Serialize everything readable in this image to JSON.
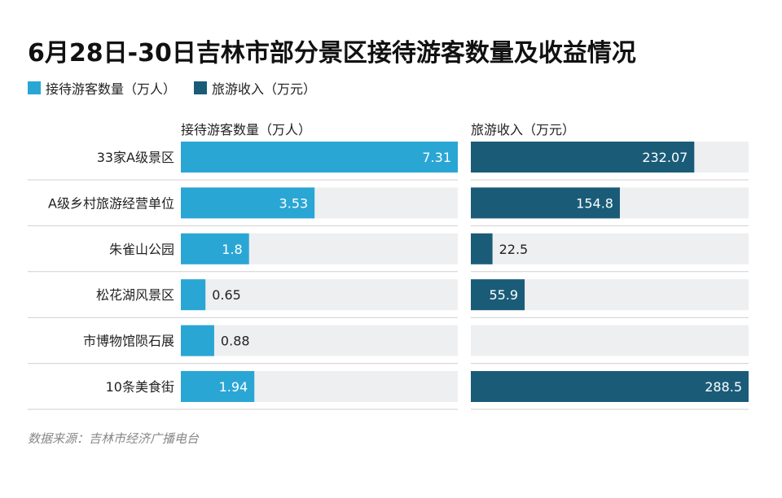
{
  "title": "6月28日-30日吉林市部分景区接待游客数量及收益情况",
  "legend": [
    {
      "label": "接待游客数量（万人）",
      "color": "#2aa6d5"
    },
    {
      "label": "旅游收入（万元）",
      "color": "#1a5c78"
    }
  ],
  "panels": {
    "left_header": "接待游客数量（万人）",
    "right_header": "旅游收入（万元）"
  },
  "footer": "数据来源：吉林市经济广播电台",
  "chart_data": {
    "type": "bar",
    "orientation": "horizontal",
    "categories": [
      "33家A级景区",
      "A级乡村旅游经营单位",
      "朱雀山公园",
      "松花湖风景区",
      "市博物馆陨石展",
      "10条美食街"
    ],
    "series": [
      {
        "name": "接待游客数量（万人）",
        "color": "#2aa6d5",
        "values": [
          7.31,
          3.53,
          1.8,
          0.65,
          0.88,
          1.94
        ],
        "labels": [
          "7.31",
          "3.53",
          "1.8",
          "0.65",
          "0.88",
          "1.94"
        ],
        "xlim": [
          0,
          7.31
        ]
      },
      {
        "name": "旅游收入（万元）",
        "color": "#1a5c78",
        "values": [
          232.07,
          154.8,
          22.5,
          55.9,
          null,
          288.5
        ],
        "labels": [
          "232.07",
          "154.8",
          "22.5",
          "55.9",
          "",
          "288.5"
        ],
        "xlim": [
          0,
          288.5
        ]
      }
    ],
    "track_color": "#eeeff1"
  }
}
